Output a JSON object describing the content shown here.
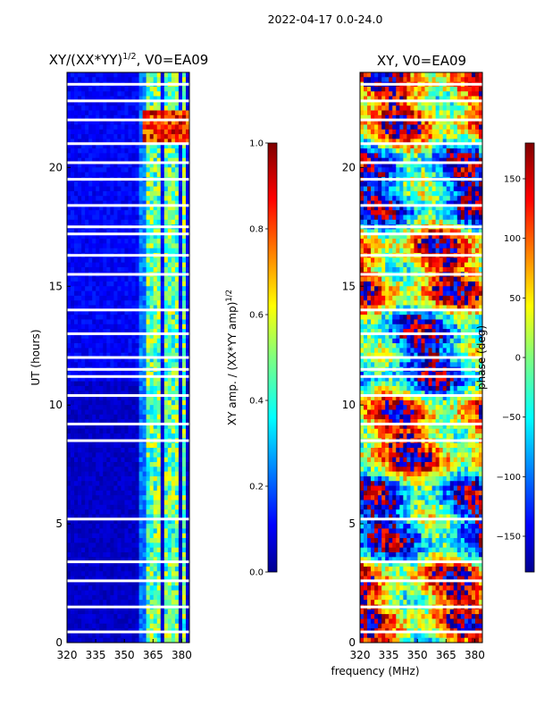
{
  "figure": {
    "suptitle": "2022-04-17 0.0-24.0",
    "shared_xlabel": "frequency (MHz)"
  },
  "chart_data": [
    {
      "type": "heatmap",
      "title": "XY/(XX*YY)^{1/2}, V0=EA09",
      "title_parts": {
        "main": "XY/(XX*YY)",
        "exponent": "1/2",
        "suffix": ", V0=EA09"
      },
      "xlabel": "",
      "ylabel": "UT (hours)",
      "xlim": [
        320,
        384
      ],
      "ylim": [
        0,
        24
      ],
      "xticks": [
        320,
        335,
        350,
        365,
        380
      ],
      "yticks": [
        0,
        5,
        10,
        15,
        20
      ],
      "colorbar": {
        "label_main": "XY amp. / (XX*YY amp)",
        "label_exponent": "1/2",
        "range": [
          0.0,
          1.0
        ],
        "ticks": [
          "0.0",
          "0.2",
          "0.4",
          "0.6",
          "0.8",
          "1.0"
        ],
        "tick_values": [
          0.0,
          0.2,
          0.4,
          0.6,
          0.8,
          1.0
        ]
      },
      "colormap": "jet",
      "high_amplitude_bands_MHz": [
        [
          361,
          365
        ],
        [
          366,
          369
        ],
        [
          370,
          372
        ],
        [
          373,
          376
        ],
        [
          377,
          379
        ],
        [
          381,
          382
        ]
      ],
      "gap_hours": [
        0.45,
        1.5,
        2.6,
        3.4,
        5.2,
        8.5,
        9.2,
        10.4,
        11.2,
        11.5,
        12.0,
        13.0,
        14.0,
        15.5,
        16.3,
        17.2,
        17.5,
        18.4,
        19.5,
        20.2,
        21.0,
        22.0,
        22.8,
        23.5
      ]
    },
    {
      "type": "heatmap",
      "title": "XY, V0=EA09",
      "xlabel": "frequency (MHz)",
      "ylabel": "",
      "xlim": [
        320,
        384
      ],
      "ylim": [
        0,
        24
      ],
      "xticks": [
        320,
        335,
        350,
        365,
        380
      ],
      "yticks": [
        0,
        5,
        10,
        15,
        20
      ],
      "colorbar": {
        "label_main": "phase (deg)",
        "range": [
          -180,
          180
        ],
        "ticks": [
          "150",
          "100",
          "50",
          "0",
          "−50",
          "−100",
          "−150"
        ],
        "tick_values": [
          150,
          100,
          50,
          0,
          -50,
          -100,
          -150
        ]
      },
      "colormap": "jet",
      "gap_hours": [
        0.45,
        1.5,
        2.6,
        3.4,
        5.2,
        8.5,
        9.2,
        10.4,
        11.2,
        11.5,
        12.0,
        13.0,
        14.0,
        15.5,
        16.3,
        17.2,
        17.5,
        18.4,
        19.5,
        20.2,
        21.0,
        22.0,
        22.8,
        23.5
      ]
    }
  ]
}
